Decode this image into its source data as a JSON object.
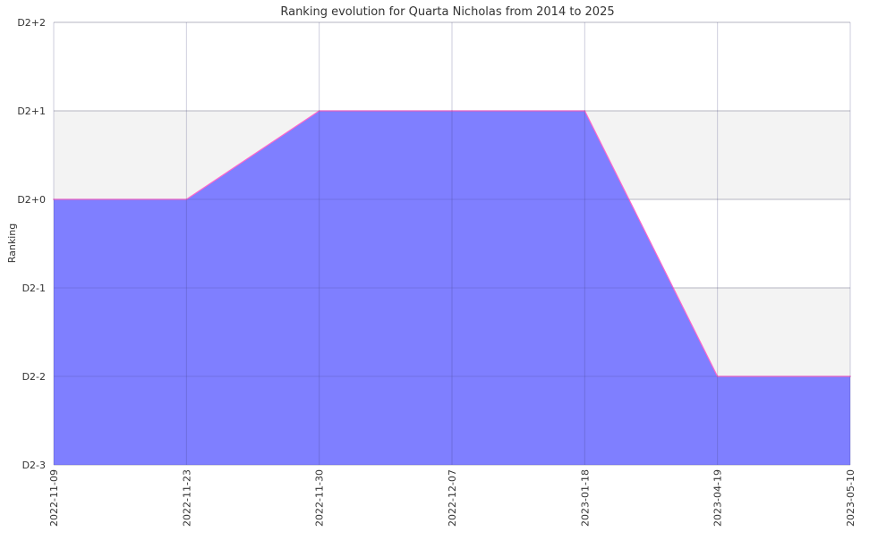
{
  "chart_data": {
    "type": "area",
    "title": "Ranking evolution for Quarta Nicholas from 2014 to 2025",
    "xlabel": "",
    "ylabel": "Ranking",
    "y_tick_labels": [
      "D2-3",
      "D2-2",
      "D2-1",
      "D2+0",
      "D2+1",
      "D2+2"
    ],
    "ylim": [
      -3,
      2
    ],
    "x": [
      "2022-11-09",
      "2022-11-23",
      "2022-11-30",
      "2022-12-07",
      "2023-01-18",
      "2023-04-19",
      "2023-05-10"
    ],
    "values": [
      0,
      0,
      1,
      1,
      1,
      -2,
      -2
    ],
    "grid": true,
    "fill_color": "#7b7bff",
    "line_color": "#ff66cc",
    "band_color": "#f3f3f3",
    "legend": "none"
  }
}
